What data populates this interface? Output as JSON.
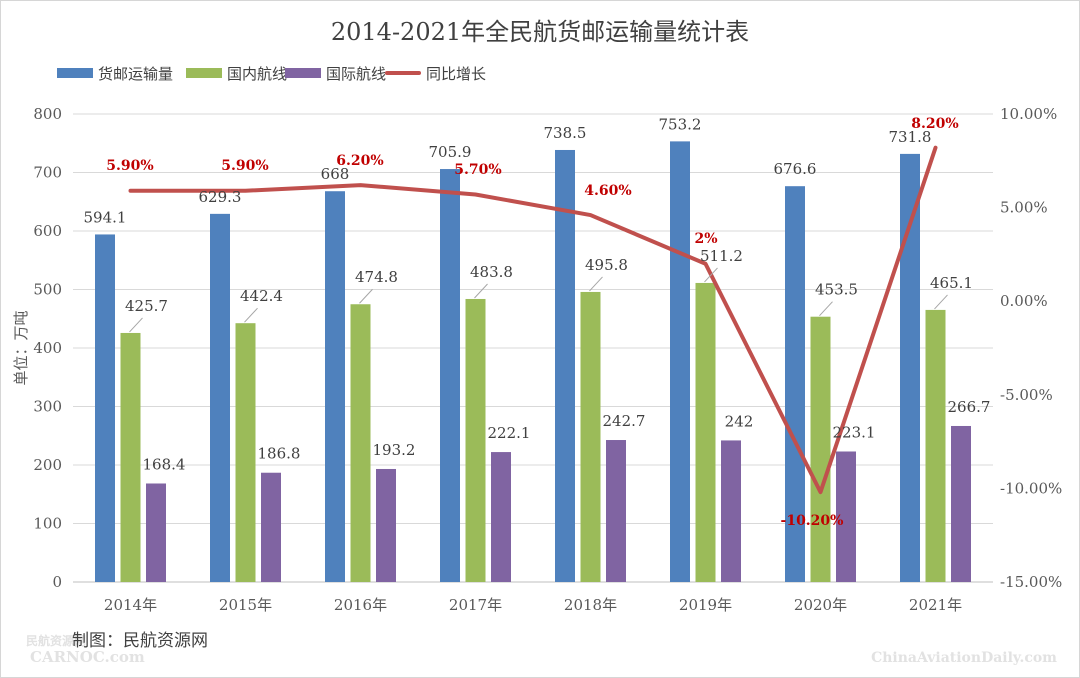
{
  "chart_data": {
    "type": "bar",
    "title": "2014-2021年全民航货邮运输量统计表",
    "ylabel": "单位：万吨",
    "y2label": "",
    "ylim": [
      0,
      800
    ],
    "y2lim": [
      -15,
      10
    ],
    "yticks": [
      "0",
      "100",
      "200",
      "300",
      "400",
      "500",
      "600",
      "700",
      "800"
    ],
    "y2ticks": [
      "-15.00%",
      "-10.00%",
      "-5.00%",
      "0.00%",
      "5.00%",
      "10.00%"
    ],
    "categories": [
      "2014年",
      "2015年",
      "2016年",
      "2017年",
      "2018年",
      "2019年",
      "2020年",
      "2021年"
    ],
    "grid": true,
    "legend_position": "top-left",
    "series": [
      {
        "name": "货邮运输量",
        "type": "bar",
        "axis": "left",
        "color": "#4f81bd",
        "values": [
          594.1,
          629.3,
          668,
          705.9,
          738.5,
          753.2,
          676.6,
          731.8
        ],
        "labels": [
          "594.1",
          "629.3",
          "668",
          "705.9",
          "738.5",
          "753.2",
          "676.6",
          "731.8"
        ]
      },
      {
        "name": "国内航线",
        "type": "bar",
        "axis": "left",
        "color": "#9bbb59",
        "values": [
          425.7,
          442.4,
          474.8,
          483.8,
          495.8,
          511.2,
          453.5,
          465.1
        ],
        "labels": [
          "425.7",
          "442.4",
          "474.8",
          "483.8",
          "495.8",
          "511.2",
          "453.5",
          "465.1"
        ]
      },
      {
        "name": "国际航线",
        "type": "bar",
        "axis": "left",
        "color": "#8064a2",
        "values": [
          168.4,
          186.8,
          193.2,
          222.1,
          242.7,
          242,
          223.1,
          266.7
        ],
        "labels": [
          "168.4",
          "186.8",
          "193.2",
          "222.1",
          "242.7",
          "242",
          "223.1",
          "266.7"
        ]
      },
      {
        "name": "同比增长",
        "type": "line",
        "axis": "right",
        "color": "#c0504d",
        "values": [
          5.9,
          5.9,
          6.2,
          5.7,
          4.6,
          2,
          -10.2,
          8.2
        ],
        "labels": [
          "5.90%",
          "5.90%",
          "6.20%",
          "5.70%",
          "4.60%",
          "2%",
          "-10.20%",
          "8.20%"
        ]
      }
    ]
  },
  "footer": {
    "credit": "制图：民航资源网",
    "watermark_left_top": "民航资源网",
    "watermark_left_bottom": "CARNOC.com",
    "watermark_right": "ChinaAviationDaily.com"
  }
}
